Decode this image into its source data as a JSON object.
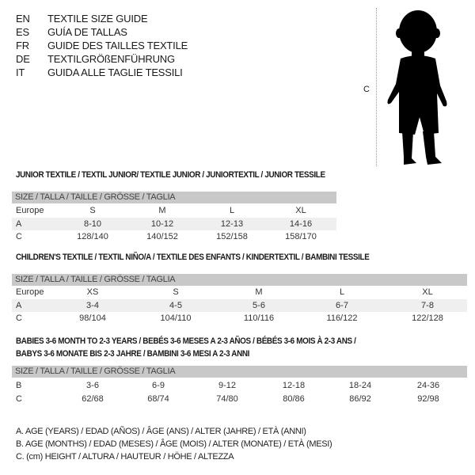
{
  "languages": [
    {
      "code": "EN",
      "text": "TEXTILE SIZE GUIDE"
    },
    {
      "code": "ES",
      "text": "GUÍA DE TALLAS"
    },
    {
      "code": "FR",
      "text": "GUIDE DES TAILLES TEXTILE"
    },
    {
      "code": "DE",
      "text": "TEXTILGRÖßENFÜHRUNG"
    },
    {
      "code": "IT",
      "text": "GUIDA ALLE TAGLIE TESSILI"
    }
  ],
  "figure": {
    "label": "C"
  },
  "size_header": "SIZE / TALLA / TAILLE / GRÖSSE / TAGLIA",
  "junior": {
    "title": "JUNIOR TEXTILE / TEXTIL JUNIOR/ TEXTILE JUNIOR / JUNIORTEXTIL / JUNIOR TESSILE",
    "rows": [
      {
        "label": "Europe",
        "values": [
          "S",
          "M",
          "L",
          "XL"
        ]
      },
      {
        "label": "A",
        "values": [
          "8-10",
          "10-12",
          "12-13",
          "14-16"
        ]
      },
      {
        "label": "C",
        "values": [
          "128/140",
          "140/152",
          "152/158",
          "158/170"
        ]
      }
    ]
  },
  "children": {
    "title": "CHILDREN'S TEXTILE / TEXTIL NIÑO/A / TEXTILE DES ENFANTS / KINDERTEXTIL / BAMBINI TESSILE",
    "rows": [
      {
        "label": "Europe",
        "values": [
          "XS",
          "S",
          "M",
          "L",
          "XL"
        ]
      },
      {
        "label": "A",
        "values": [
          "3-4",
          "4-5",
          "5-6",
          "6-7",
          "7-8"
        ]
      },
      {
        "label": "C",
        "values": [
          "98/104",
          "104/110",
          "110/116",
          "116/122",
          "122/128"
        ]
      }
    ]
  },
  "babies": {
    "title1": "BABIES 3-6 MONTH TO 2-3 YEARS / BEBÉS 3-6 MESES A 2-3 AÑOS / BÉBÉS 3-6 MOIS À 2-3 ANS /",
    "title2": "BABYS 3-6 MONATE BIS 2-3 JAHRE / BAMBINI 3-6 MESI A 2-3 ANNI",
    "rows": [
      {
        "label": "B",
        "values": [
          "3-6",
          "6-9",
          "9-12",
          "12-18",
          "18-24",
          "24-36"
        ]
      },
      {
        "label": "C",
        "values": [
          "62/68",
          "68/74",
          "74/80",
          "80/86",
          "86/92",
          "92/98"
        ]
      }
    ]
  },
  "legend": [
    "A. AGE (YEARS) / EDAD (AÑOS) / ÂGE (ANS) / ALTER (JAHRE) / ETÀ (ANNI)",
    "B. AGE (MONTHS) / EDAD (MESES) / ÂGE (MOIS) / ALTER (MONATE) / ETÀ (MESI)",
    "C. (cm) HEIGHT / ALTURA / HAUTEUR / HÖHE / ALTEZZA"
  ]
}
